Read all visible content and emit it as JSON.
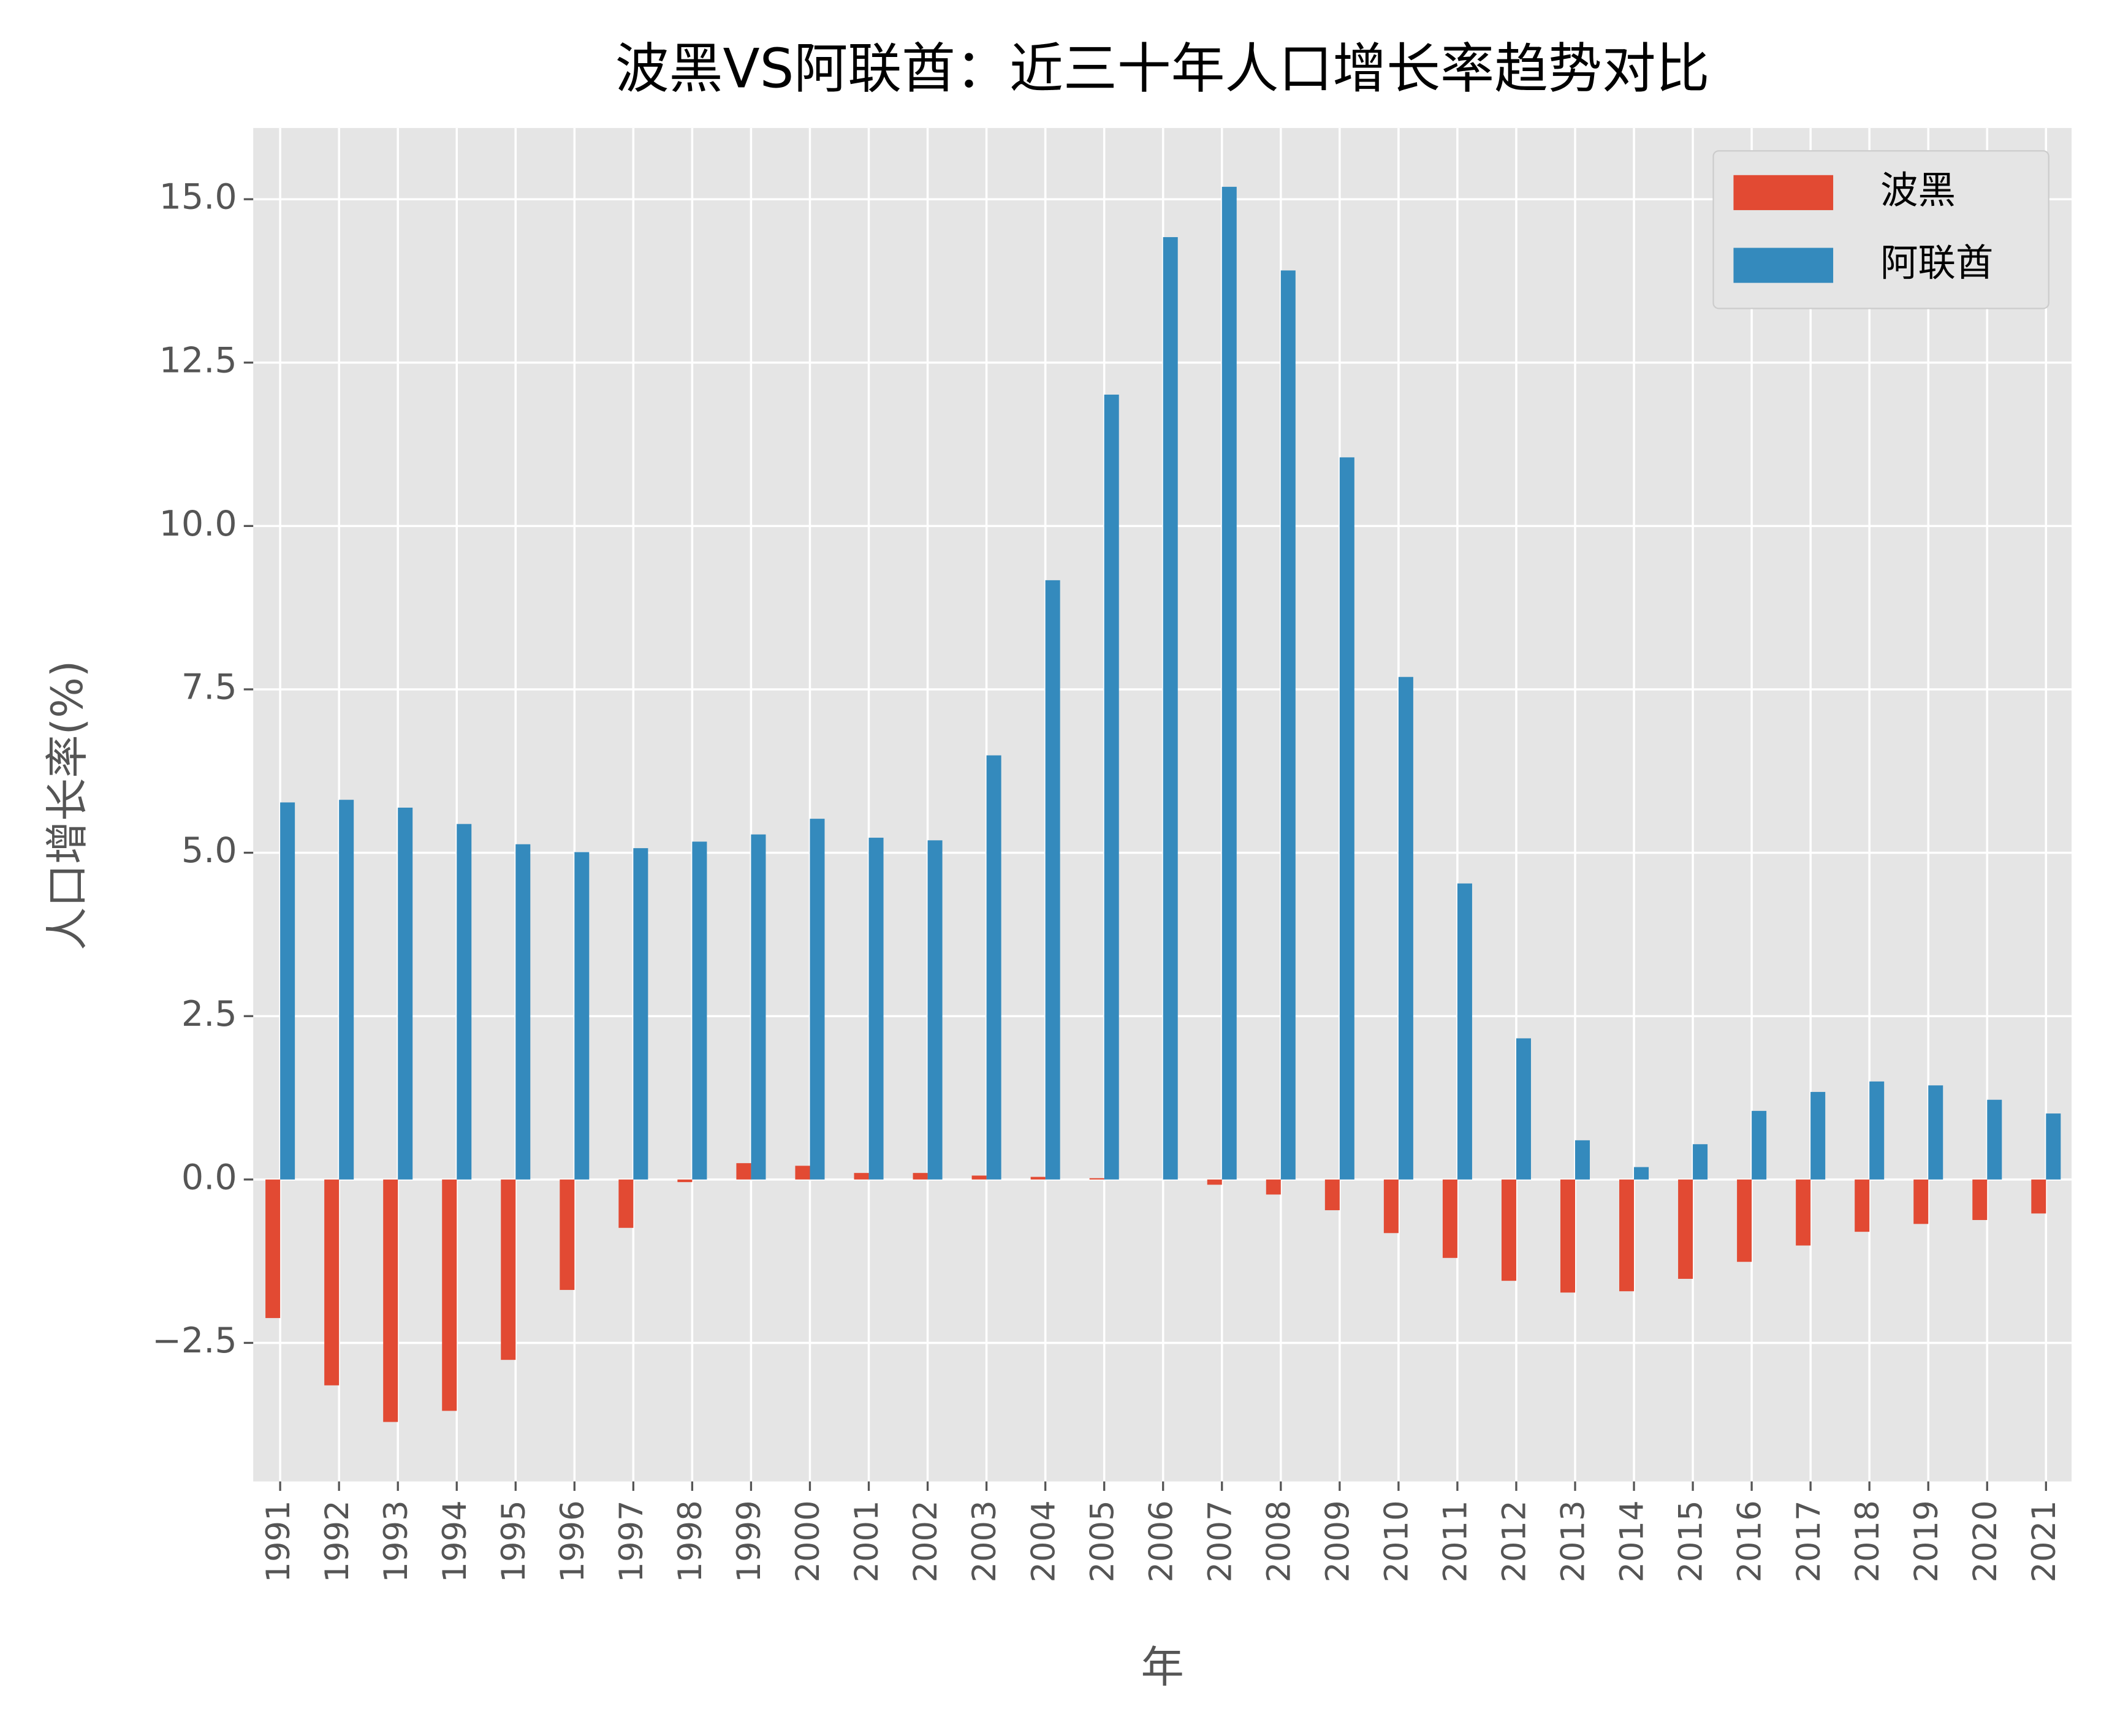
{
  "chart_data": {
    "type": "bar",
    "title": "波黑VS阿联酋：近三十年人口增长率趋势对比",
    "x_label": "年",
    "y_label": "人口增长率(%)",
    "categories": [
      "1991",
      "1992",
      "1993",
      "1994",
      "1995",
      "1996",
      "1997",
      "1998",
      "1999",
      "2000",
      "2001",
      "2002",
      "2003",
      "2004",
      "2005",
      "2006",
      "2007",
      "2008",
      "2009",
      "2010",
      "2011",
      "2012",
      "2013",
      "2014",
      "2015",
      "2016",
      "2017",
      "2018",
      "2019",
      "2020",
      "2021"
    ],
    "series": [
      {
        "name": "波黑",
        "color": "#e24a33",
        "values": [
          -2.12,
          -3.15,
          -3.71,
          -3.54,
          -2.76,
          -1.69,
          -0.74,
          -0.04,
          0.25,
          0.21,
          0.1,
          0.1,
          0.06,
          0.04,
          0.02,
          0.0,
          -0.08,
          -0.23,
          -0.47,
          -0.82,
          -1.2,
          -1.55,
          -1.73,
          -1.71,
          -1.52,
          -1.26,
          -1.01,
          -0.8,
          -0.68,
          -0.62,
          -0.52
        ]
      },
      {
        "name": "阿联酋",
        "color": "#348abd",
        "values": [
          5.77,
          5.81,
          5.69,
          5.44,
          5.13,
          5.01,
          5.07,
          5.17,
          5.28,
          5.52,
          5.23,
          5.19,
          6.49,
          9.17,
          12.01,
          14.42,
          15.19,
          13.91,
          11.05,
          7.69,
          4.53,
          2.16,
          0.6,
          0.19,
          0.54,
          1.05,
          1.34,
          1.5,
          1.44,
          1.22,
          1.01
        ]
      }
    ],
    "ylim": [
      -4.62,
      16.09
    ],
    "yticks": [
      {
        "value": -2.5,
        "label": "−2.5"
      },
      {
        "value": 0,
        "label": "0.0"
      },
      {
        "value": 2.5,
        "label": "2.5"
      },
      {
        "value": 5,
        "label": "5.0"
      },
      {
        "value": 7.5,
        "label": "7.5"
      },
      {
        "value": 10,
        "label": "10.0"
      },
      {
        "value": 12.5,
        "label": "12.5"
      },
      {
        "value": 15,
        "label": "15.0"
      }
    ],
    "grid": true,
    "legend": "upper right"
  }
}
